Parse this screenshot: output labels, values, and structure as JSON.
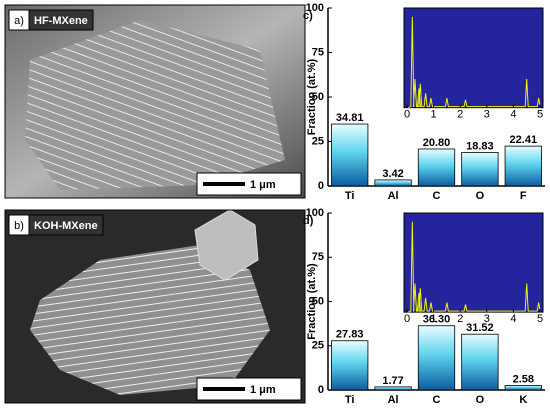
{
  "images": [
    {
      "label": "a)",
      "title": "HF-MXene",
      "scale": "1 μm"
    },
    {
      "label": "b)",
      "title": "KOH-MXene",
      "scale": "1 μm"
    }
  ],
  "chart_data": [
    {
      "type": "bar",
      "panel_label": "c)",
      "ylabel": "Fraction (at.%)",
      "categories": [
        "Ti",
        "Al",
        "C",
        "O",
        "F"
      ],
      "values": [
        34.81,
        3.42,
        20.8,
        18.83,
        22.41
      ],
      "value_labels": [
        "34.81",
        "3.42",
        "20.80",
        "18.83",
        "22.41"
      ],
      "color": "#0b5c9e",
      "ylim": [
        0,
        100
      ],
      "yticks": [
        0,
        25,
        50,
        75,
        100
      ],
      "inset": {
        "xlim": [
          0,
          5
        ],
        "xticks": [
          0,
          1,
          2,
          3,
          4,
          5
        ]
      }
    },
    {
      "type": "bar",
      "panel_label": "d)",
      "ylabel": "Fraction (at.%)",
      "categories": [
        "Ti",
        "Al",
        "C",
        "O",
        "K"
      ],
      "values": [
        27.83,
        1.77,
        36.3,
        31.52,
        2.58
      ],
      "value_labels": [
        "27.83",
        "1.77",
        "36.30",
        "31.52",
        "2.58"
      ],
      "color": "#0b5c9e",
      "ylim": [
        0,
        100
      ],
      "yticks": [
        0,
        25,
        50,
        75,
        100
      ],
      "inset": {
        "xlim": [
          0,
          5
        ],
        "xticks": [
          0,
          1,
          2,
          3,
          4,
          5
        ]
      }
    }
  ]
}
